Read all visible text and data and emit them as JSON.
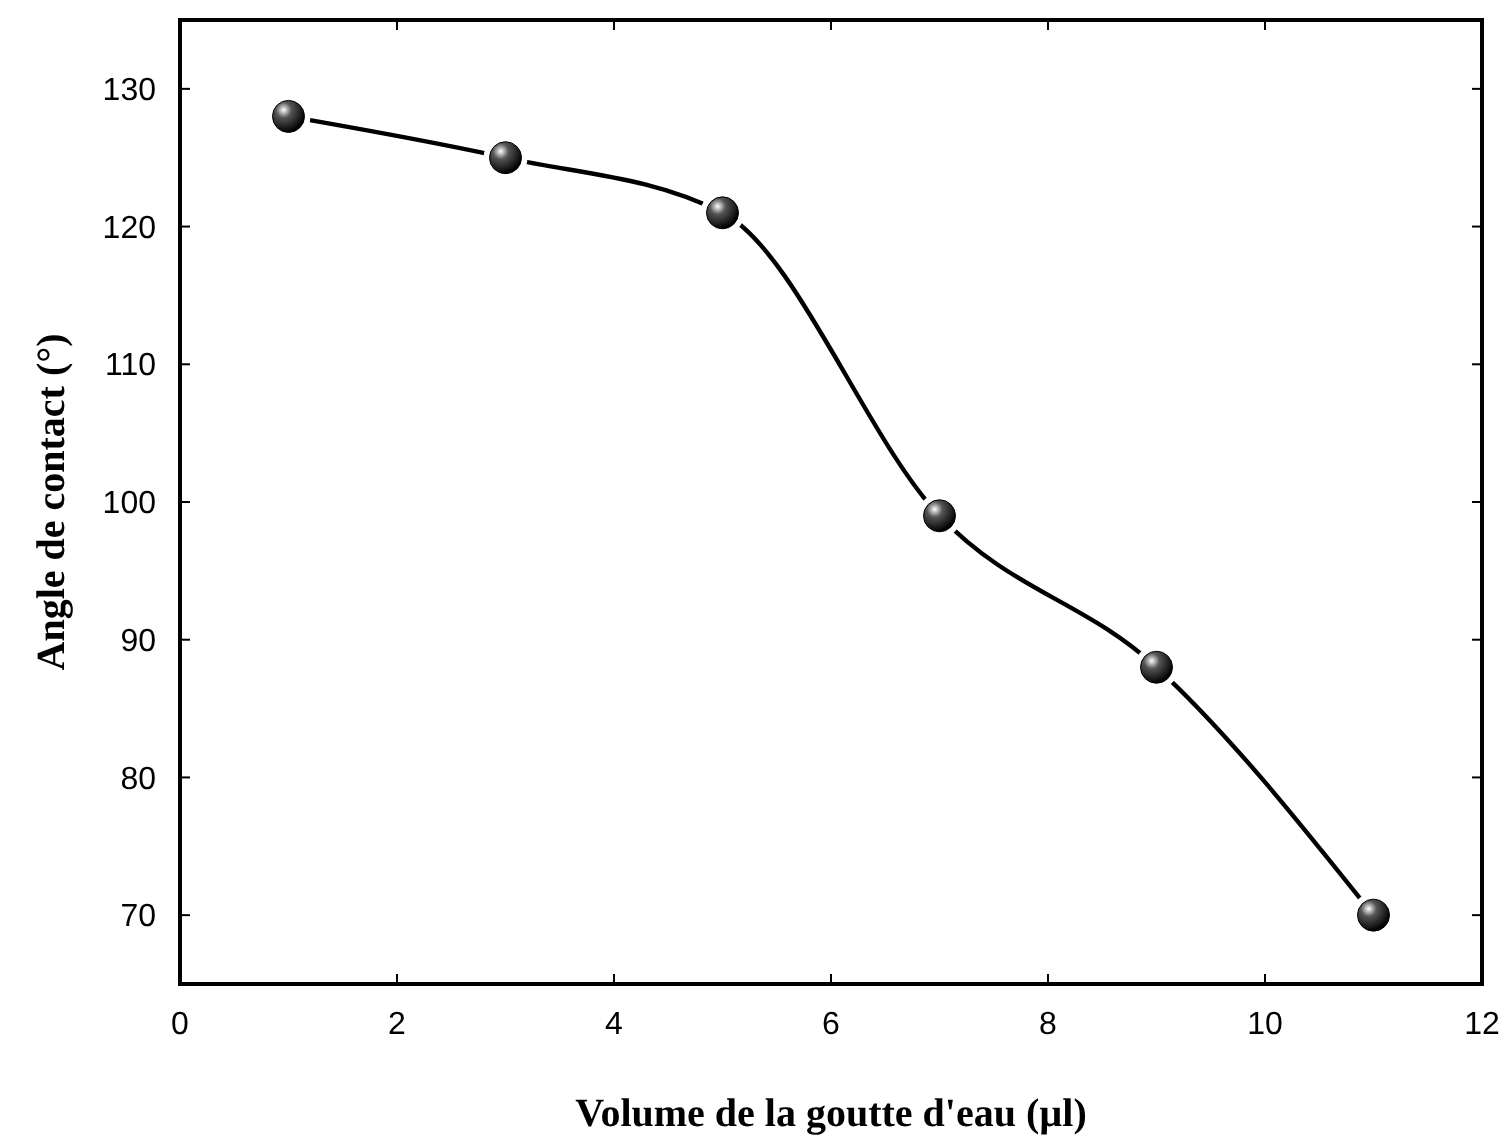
{
  "chart_data": {
    "type": "line",
    "xlabel": "Volume de la goutte d'eau (µl)",
    "ylabel": "Angle de contact (°)",
    "x": [
      1,
      3,
      5,
      7,
      9,
      11
    ],
    "series": [
      {
        "color": "#000000",
        "values": [
          128,
          125,
          121,
          99,
          88,
          70
        ]
      }
    ],
    "xlim": [
      0,
      12
    ],
    "xticks": [
      0,
      2,
      4,
      6,
      8,
      10,
      12
    ],
    "ylim": [
      65,
      135
    ],
    "yticks": [
      70,
      80,
      90,
      100,
      110,
      120,
      130
    ],
    "grid": false,
    "marker": "circle",
    "line_style": "solid"
  }
}
